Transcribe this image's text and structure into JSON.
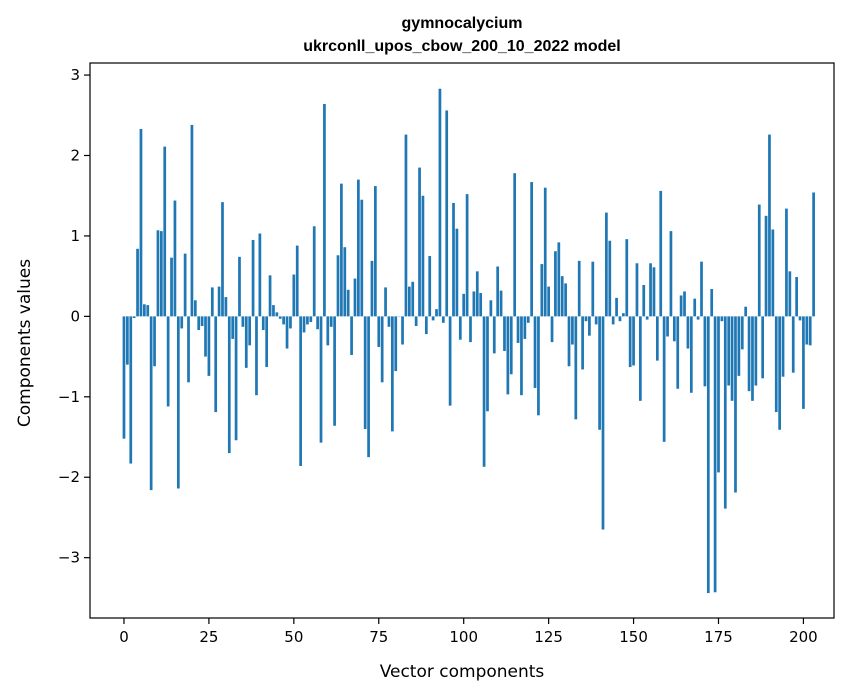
{
  "chart_data": {
    "type": "bar",
    "title_line1": "gymnocalycium",
    "title_line2": "ukrconll_upos_cbow_200_10_2022 model",
    "xlabel": "Vector components",
    "ylabel": "Components values",
    "xlim": [
      -10,
      209
    ],
    "ylim": [
      -3.75,
      3.15
    ],
    "xticks": [
      0,
      25,
      50,
      75,
      100,
      125,
      150,
      175,
      200
    ],
    "yticks": [
      3,
      2,
      1,
      0,
      -1,
      -2,
      -3
    ],
    "ytick_labels": [
      "3",
      "2",
      "1",
      "0",
      "−1",
      "−2",
      "−3"
    ],
    "bar_color": "#1f77b4",
    "grid": false,
    "values": [
      -1.52,
      -0.6,
      -1.83,
      -0.02,
      0.84,
      2.33,
      0.15,
      0.14,
      -2.16,
      -0.62,
      1.07,
      1.06,
      2.11,
      -1.12,
      0.73,
      1.44,
      -2.14,
      -0.15,
      0.78,
      -0.82,
      2.38,
      0.2,
      -0.17,
      -0.12,
      -0.5,
      -0.74,
      0.36,
      -1.19,
      0.37,
      1.42,
      0.24,
      -1.7,
      -0.28,
      -1.54,
      0.74,
      -0.13,
      -0.64,
      -0.36,
      0.95,
      -0.98,
      1.03,
      -0.17,
      -0.63,
      0.51,
      0.14,
      0.05,
      -0.03,
      -0.1,
      -0.4,
      -0.15,
      0.52,
      0.88,
      -1.86,
      -0.2,
      -0.1,
      -0.07,
      1.12,
      -0.16,
      -1.57,
      2.64,
      -0.36,
      -0.13,
      -1.36,
      0.76,
      1.65,
      0.86,
      0.33,
      -0.48,
      0.47,
      1.7,
      1.45,
      -1.4,
      -1.75,
      0.69,
      1.62,
      -0.38,
      -0.82,
      0.36,
      -0.13,
      -1.43,
      -0.68,
      0.0,
      -0.35,
      2.26,
      0.37,
      0.43,
      -0.12,
      1.85,
      1.5,
      -0.22,
      0.75,
      -0.05,
      0.09,
      2.83,
      -0.08,
      2.56,
      -1.11,
      1.41,
      1.09,
      -0.29,
      0.28,
      1.52,
      -0.32,
      0.31,
      0.56,
      0.29,
      -1.87,
      -1.18,
      0.2,
      -0.46,
      0.62,
      0.32,
      -0.43,
      -0.97,
      -0.72,
      1.78,
      -0.33,
      -0.98,
      -0.28,
      -0.08,
      1.67,
      -0.89,
      -1.23,
      0.65,
      1.6,
      0.37,
      -0.32,
      0.81,
      0.92,
      0.5,
      0.41,
      -0.62,
      -0.35,
      -1.28,
      0.69,
      -0.66,
      -0.06,
      -0.24,
      0.68,
      -0.1,
      -1.41,
      -2.65,
      1.29,
      0.94,
      -0.1,
      0.23,
      -0.06,
      0.04,
      0.96,
      -0.63,
      -0.61,
      0.66,
      -1.05,
      0.39,
      -0.04,
      0.66,
      0.61,
      -0.55,
      1.56,
      -1.56,
      -0.25,
      1.06,
      -0.31,
      -0.9,
      0.26,
      0.31,
      -0.4,
      -0.95,
      0.22,
      -0.04,
      0.68,
      -0.87,
      -3.44,
      0.34,
      -3.43,
      -1.94,
      -0.06,
      -2.39,
      -0.86,
      -1.05,
      -2.19,
      -0.74,
      -0.41,
      0.12,
      -0.93,
      -1.05,
      -0.86,
      1.39,
      -0.77,
      1.25,
      2.26,
      1.08,
      -1.19,
      -1.41,
      -0.75,
      1.34,
      0.56,
      -0.7,
      0.49,
      -0.05,
      -1.15,
      -0.35,
      -0.36,
      1.54
    ]
  }
}
